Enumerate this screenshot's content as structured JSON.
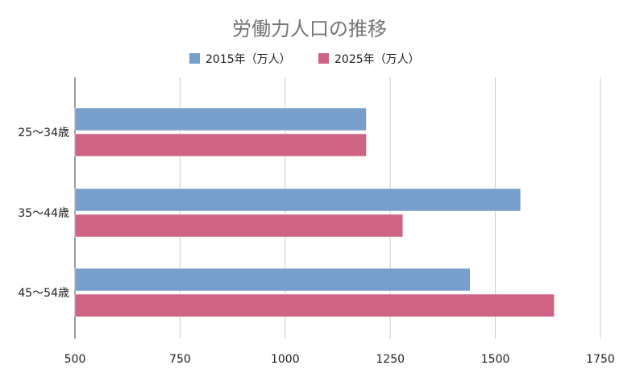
{
  "chart_data": {
    "type": "bar",
    "orientation": "horizontal",
    "title": "労働力人口の推移",
    "xlabel": "",
    "ylabel": "",
    "categories": [
      "25〜34歳",
      "35〜44歳",
      "45〜54歳"
    ],
    "series": [
      {
        "name": "2015年（万人）",
        "color": "#789fcc",
        "values": [
          1193,
          1560,
          1440
        ]
      },
      {
        "name": "2025年（万人）",
        "color": "#cf6383",
        "values": [
          1193,
          1280,
          1640
        ]
      }
    ],
    "xlim": [
      500,
      1750
    ],
    "xticks": [
      500,
      750,
      1000,
      1250,
      1500,
      1750
    ],
    "grid": true,
    "legend_position": "top"
  }
}
